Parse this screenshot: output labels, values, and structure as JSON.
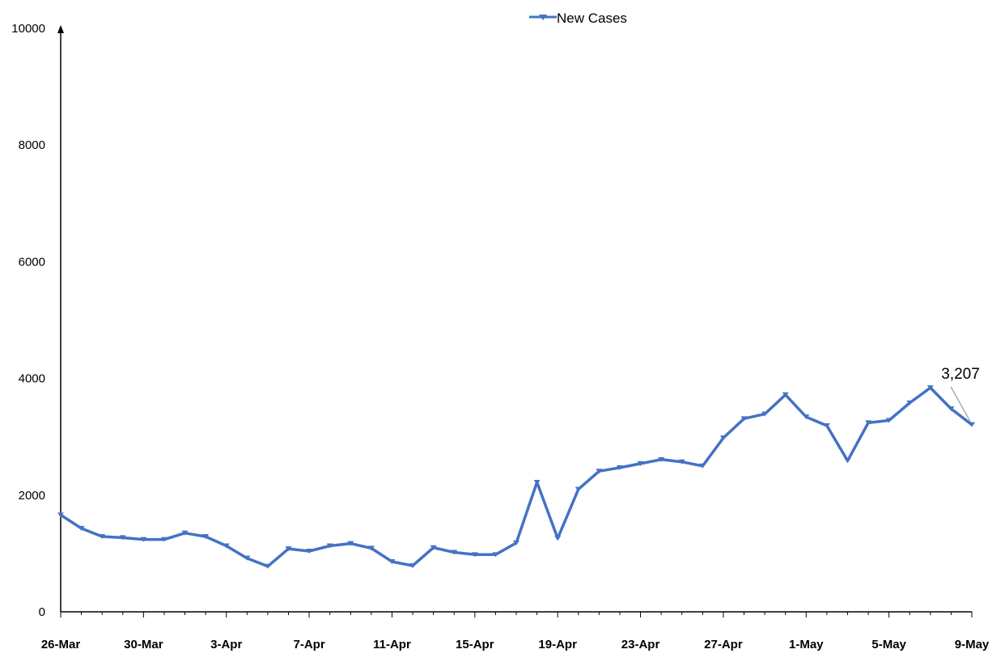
{
  "chart_data": {
    "type": "line",
    "legend": {
      "label": "New Cases",
      "placement": "top-center"
    },
    "ylim": [
      0,
      10000
    ],
    "yticks": [
      0,
      2000,
      4000,
      6000,
      8000,
      10000
    ],
    "xtick_labels": [
      "26-Mar",
      "30-Mar",
      "3-Apr",
      "7-Apr",
      "11-Apr",
      "15-Apr",
      "19-Apr",
      "23-Apr",
      "27-Apr",
      "1-May",
      "5-May",
      "9-May"
    ],
    "series": [
      {
        "name": "New Cases",
        "color": "#4472C4",
        "x": [
          "26-Mar",
          "27-Mar",
          "28-Mar",
          "29-Mar",
          "30-Mar",
          "31-Mar",
          "1-Apr",
          "2-Apr",
          "3-Apr",
          "4-Apr",
          "5-Apr",
          "6-Apr",
          "7-Apr",
          "8-Apr",
          "9-Apr",
          "10-Apr",
          "11-Apr",
          "12-Apr",
          "13-Apr",
          "14-Apr",
          "15-Apr",
          "16-Apr",
          "17-Apr",
          "18-Apr",
          "19-Apr",
          "20-Apr",
          "21-Apr",
          "22-Apr",
          "23-Apr",
          "24-Apr",
          "25-Apr",
          "26-Apr",
          "27-Apr",
          "28-Apr",
          "29-Apr",
          "30-Apr",
          "1-May",
          "2-May",
          "3-May",
          "4-May",
          "5-May",
          "6-May",
          "7-May",
          "8-May",
          "9-May"
        ],
        "values": [
          1660,
          1430,
          1290,
          1270,
          1240,
          1240,
          1350,
          1290,
          1130,
          920,
          780,
          1080,
          1040,
          1130,
          1170,
          1090,
          860,
          790,
          1100,
          1020,
          980,
          980,
          1180,
          2220,
          1260,
          2100,
          2410,
          2470,
          2540,
          2610,
          2570,
          2500,
          2980,
          3310,
          3390,
          3720,
          3340,
          3190,
          2590,
          3240,
          3280,
          3580,
          3840,
          3480,
          3207
        ],
        "data_labels": [
          {
            "index": 44,
            "text": "3,207"
          }
        ]
      }
    ]
  }
}
